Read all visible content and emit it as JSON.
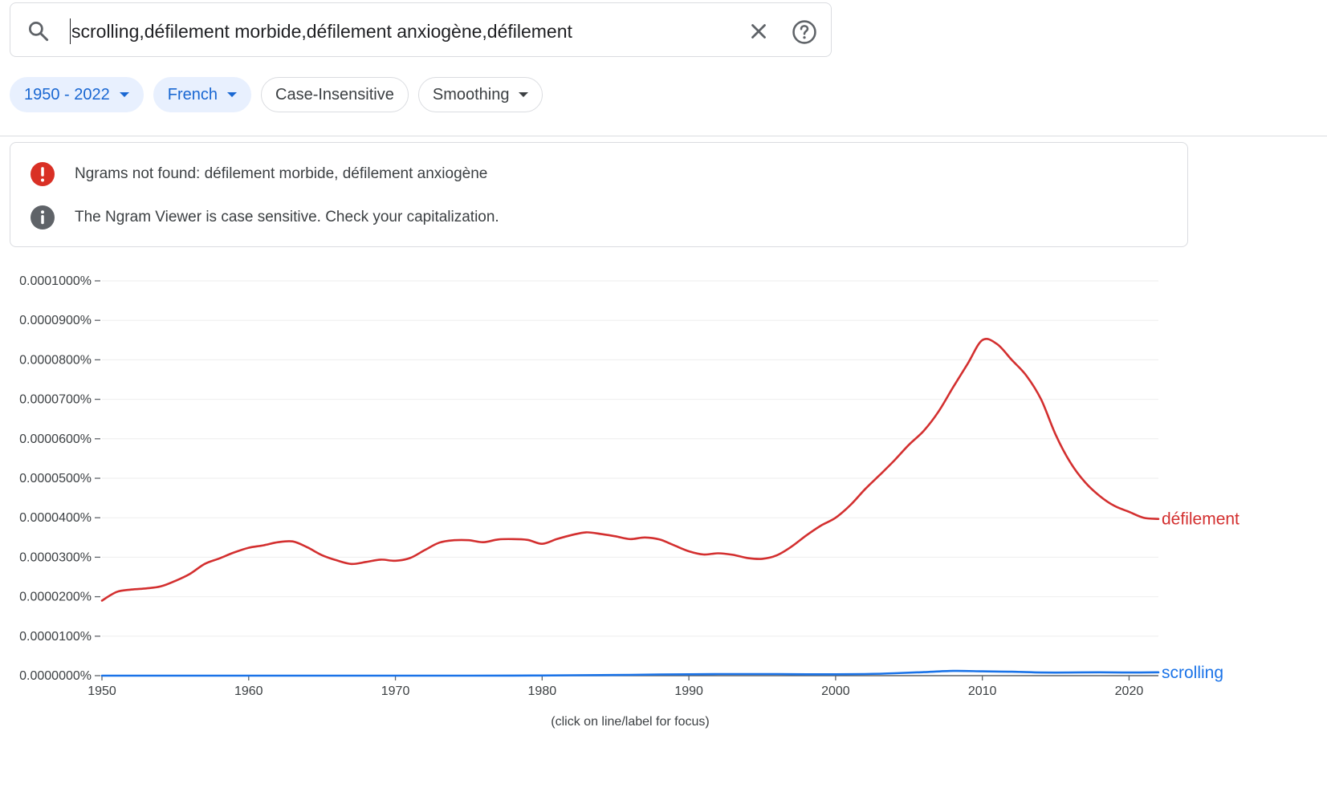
{
  "search": {
    "query": "scrolling,défilement morbide,défilement anxiogène,défilement",
    "icon": "search-icon",
    "clear_icon": "close-icon",
    "help_icon": "help-circle-icon"
  },
  "filters": {
    "years": "1950 - 2022",
    "corpus": "French",
    "case": "Case-Insensitive",
    "smoothing": "Smoothing"
  },
  "notices": [
    {
      "icon": "error-icon",
      "color": "#d93025",
      "text": "Ngrams not found: défilement morbide, défilement anxiogène"
    },
    {
      "icon": "info-icon",
      "color": "#5f6368",
      "text": "The Ngram Viewer is case sensitive. Check your capitalization."
    }
  ],
  "footnote": "(click on line/label for focus)",
  "chart_data": {
    "type": "line",
    "title": "",
    "xlabel": "",
    "ylabel": "",
    "xlim": [
      1950,
      2022
    ],
    "ylim": [
      0,
      1e-06
    ],
    "grid": true,
    "legend": "labels at line ends (right)",
    "x_ticks": [
      "1950",
      "1960",
      "1970",
      "1980",
      "1990",
      "2000",
      "2010",
      "2020"
    ],
    "y_ticks": [
      "0.0000000%",
      "0.0000100%",
      "0.0000200%",
      "0.0000300%",
      "0.0000400%",
      "0.0000500%",
      "0.0000600%",
      "0.0000700%",
      "0.0000800%",
      "0.0000900%",
      "0.0001000%"
    ],
    "series": [
      {
        "name": "défilement",
        "color": "#d32f2f",
        "points": [
          [
            1950,
            1.9e-07
          ],
          [
            1951,
            2.12e-07
          ],
          [
            1952,
            2.18e-07
          ],
          [
            1953,
            2.21e-07
          ],
          [
            1954,
            2.26e-07
          ],
          [
            1955,
            2.4e-07
          ],
          [
            1956,
            2.58e-07
          ],
          [
            1957,
            2.83e-07
          ],
          [
            1958,
            2.97e-07
          ],
          [
            1959,
            3.12e-07
          ],
          [
            1960,
            3.24e-07
          ],
          [
            1961,
            3.3e-07
          ],
          [
            1962,
            3.38e-07
          ],
          [
            1963,
            3.4e-07
          ],
          [
            1964,
            3.25e-07
          ],
          [
            1965,
            3.05e-07
          ],
          [
            1966,
            2.92e-07
          ],
          [
            1967,
            2.83e-07
          ],
          [
            1968,
            2.88e-07
          ],
          [
            1969,
            2.94e-07
          ],
          [
            1970,
            2.91e-07
          ],
          [
            1971,
            2.98e-07
          ],
          [
            1972,
            3.18e-07
          ],
          [
            1973,
            3.37e-07
          ],
          [
            1974,
            3.43e-07
          ],
          [
            1975,
            3.43e-07
          ],
          [
            1976,
            3.38e-07
          ],
          [
            1977,
            3.45e-07
          ],
          [
            1978,
            3.46e-07
          ],
          [
            1979,
            3.44e-07
          ],
          [
            1980,
            3.34e-07
          ],
          [
            1981,
            3.46e-07
          ],
          [
            1982,
            3.56e-07
          ],
          [
            1983,
            3.63e-07
          ],
          [
            1984,
            3.59e-07
          ],
          [
            1985,
            3.53e-07
          ],
          [
            1986,
            3.46e-07
          ],
          [
            1987,
            3.5e-07
          ],
          [
            1988,
            3.45e-07
          ],
          [
            1989,
            3.3e-07
          ],
          [
            1990,
            3.15e-07
          ],
          [
            1991,
            3.07e-07
          ],
          [
            1992,
            3.1e-07
          ],
          [
            1993,
            3.06e-07
          ],
          [
            1994,
            2.98e-07
          ],
          [
            1995,
            2.96e-07
          ],
          [
            1996,
            3.05e-07
          ],
          [
            1997,
            3.27e-07
          ],
          [
            1998,
            3.55e-07
          ],
          [
            1999,
            3.8e-07
          ],
          [
            2000,
            4e-07
          ],
          [
            2001,
            4.32e-07
          ],
          [
            2002,
            4.72e-07
          ],
          [
            2003,
            5.08e-07
          ],
          [
            2004,
            5.45e-07
          ],
          [
            2005,
            5.85e-07
          ],
          [
            2006,
            6.2e-07
          ],
          [
            2007,
            6.68e-07
          ],
          [
            2008,
            7.3e-07
          ],
          [
            2009,
            7.9e-07
          ],
          [
            2010,
            8.5e-07
          ],
          [
            2011,
            8.4e-07
          ],
          [
            2012,
            8e-07
          ],
          [
            2013,
            7.6e-07
          ],
          [
            2014,
            7e-07
          ],
          [
            2015,
            6.1e-07
          ],
          [
            2016,
            5.4e-07
          ],
          [
            2017,
            4.9e-07
          ],
          [
            2018,
            4.55e-07
          ],
          [
            2019,
            4.3e-07
          ],
          [
            2020,
            4.15e-07
          ],
          [
            2021,
            4e-07
          ],
          [
            2022,
            3.97e-07
          ]
        ]
      },
      {
        "name": "scrolling",
        "color": "#1a73e8",
        "points": [
          [
            1950,
            0.0
          ],
          [
            1955,
            0.0
          ],
          [
            1960,
            0.0
          ],
          [
            1965,
            0.0
          ],
          [
            1970,
            0.0
          ],
          [
            1975,
            0.0
          ],
          [
            1978,
            2e-10
          ],
          [
            1980,
            5e-10
          ],
          [
            1982,
            1e-09
          ],
          [
            1984,
            1.5e-09
          ],
          [
            1986,
            2e-09
          ],
          [
            1988,
            3e-09
          ],
          [
            1990,
            3.5e-09
          ],
          [
            1992,
            4e-09
          ],
          [
            1994,
            4e-09
          ],
          [
            1996,
            4e-09
          ],
          [
            1998,
            3.5e-09
          ],
          [
            2000,
            3.5e-09
          ],
          [
            2002,
            4e-09
          ],
          [
            2004,
            6e-09
          ],
          [
            2006,
            9e-09
          ],
          [
            2008,
            1.2e-08
          ],
          [
            2010,
            1.1e-08
          ],
          [
            2012,
            1e-08
          ],
          [
            2014,
            8e-09
          ],
          [
            2016,
            8e-09
          ],
          [
            2018,
            8.5e-09
          ],
          [
            2020,
            8e-09
          ],
          [
            2022,
            8.5e-09
          ]
        ]
      }
    ]
  }
}
